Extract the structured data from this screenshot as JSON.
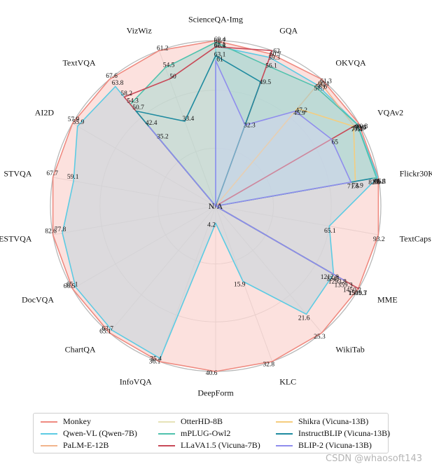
{
  "chart_data": {
    "type": "radar",
    "center_label": "N/A",
    "axes": [
      {
        "name": "GQA",
        "max": 62.0
      },
      {
        "name": "OKVQA",
        "max": 61.3
      },
      {
        "name": "VQAv2",
        "max": 80.3
      },
      {
        "name": "Flickr30K",
        "max": 86.1
      },
      {
        "name": "TextCaps",
        "max": 93.2
      },
      {
        "name": "MME",
        "max": 1510.7
      },
      {
        "name": "WikiTab",
        "max": 25.3
      },
      {
        "name": "KLC",
        "max": 32.8
      },
      {
        "name": "DeepForm",
        "max": 40.6
      },
      {
        "name": "InfoVQA",
        "max": 36.1
      },
      {
        "name": "ChartQA",
        "max": 65.1
      },
      {
        "name": "DocVQA",
        "max": 66.5
      },
      {
        "name": "ESTVQA",
        "max": 82.6
      },
      {
        "name": "STVQA",
        "max": 67.7
      },
      {
        "name": "AI2D",
        "max": 57.9
      },
      {
        "name": "TextVQA",
        "max": 67.6
      },
      {
        "name": "VizWiz",
        "max": 61.2
      },
      {
        "name": "ScienceQA-Img",
        "max": 69.4
      }
    ],
    "series": [
      {
        "name": "Monkey",
        "color": "#ef8a80",
        "fill": "#fbd7d3",
        "fill_opacity": 0.75,
        "values": [
          60.7,
          61.3,
          80.3,
          86.1,
          93.2,
          1505.3,
          25.3,
          32.8,
          40.6,
          36.1,
          65.1,
          66.5,
          82.6,
          67.7,
          57.9,
          67.6,
          61.2,
          69.4
        ]
      },
      {
        "name": "Qwen-VL (Qwen-7B)",
        "color": "#5ccbe3",
        "fill": "#c6d6dc",
        "fill_opacity": 0.6,
        "values": [
          59.3,
          58.6,
          79.5,
          85.8,
          65.1,
          1245.0,
          21.6,
          15.9,
          4.2,
          35.4,
          63.7,
          65.1,
          77.8,
          59.1,
          55.9,
          63.8,
          null,
          67.1
        ]
      },
      {
        "name": "PaLM-E-12B",
        "color": "#f2b48c",
        "fill": null,
        "fill_opacity": 0,
        "values": [
          null,
          60.1,
          77.7,
          null,
          null,
          null,
          null,
          null,
          null,
          null,
          null,
          null,
          null,
          null,
          null,
          null,
          null,
          null
        ]
      },
      {
        "name": "OtterHD-8B",
        "color": "#e6e3b8",
        "fill": null,
        "fill_opacity": 0,
        "values": [
          null,
          null,
          null,
          null,
          null,
          1293.8,
          null,
          null,
          null,
          null,
          null,
          null,
          null,
          null,
          null,
          null,
          null,
          null
        ]
      },
      {
        "name": "mPLUG-Owl2",
        "color": "#4fc2ad",
        "fill": "#9fd9cf",
        "fill_opacity": 0.5,
        "values": [
          56.1,
          57.7,
          79.4,
          85.1,
          null,
          1450.2,
          null,
          null,
          null,
          null,
          null,
          null,
          null,
          null,
          null,
          54.3,
          54.5,
          68.7
        ]
      },
      {
        "name": "LLaVA1.5 (Vicuna-7B)",
        "color": "#c84a58",
        "fill": null,
        "fill_opacity": 0,
        "values": [
          62.0,
          null,
          78.5,
          null,
          null,
          1510.7,
          null,
          null,
          null,
          null,
          null,
          null,
          null,
          null,
          null,
          58.2,
          50.0,
          66.8
        ]
      },
      {
        "name": "Shikra (Vicuna-13B)",
        "color": "#f5cd7e",
        "fill": null,
        "fill_opacity": 0,
        "values": [
          null,
          47.2,
          77.4,
          73.9,
          null,
          null,
          null,
          null,
          null,
          null,
          null,
          null,
          null,
          null,
          null,
          null,
          null,
          null
        ]
      },
      {
        "name": "InstructBLIP (Vicuna-13B)",
        "color": "#1f8ba0",
        "fill": null,
        "fill_opacity": 0,
        "values": [
          49.5,
          null,
          null,
          82.8,
          null,
          1212.8,
          null,
          null,
          null,
          null,
          null,
          null,
          null,
          null,
          null,
          50.7,
          33.4,
          63.1
        ]
      },
      {
        "name": "BLIP-2 (Vicuna-13B)",
        "color": "#8f8ded",
        "fill": "#d4d2f3",
        "fill_opacity": 0.45,
        "values": [
          32.3,
          45.9,
          65.0,
          71.6,
          null,
          1359.3,
          null,
          null,
          null,
          null,
          null,
          null,
          null,
          null,
          null,
          42.4,
          null,
          61.0
        ]
      }
    ],
    "extra_labels": [
      {
        "axis": "TextVQA",
        "value": 35.2
      }
    ],
    "grid": true,
    "legend_position": "bottom"
  },
  "watermark": "CSDN @whaosoft143"
}
